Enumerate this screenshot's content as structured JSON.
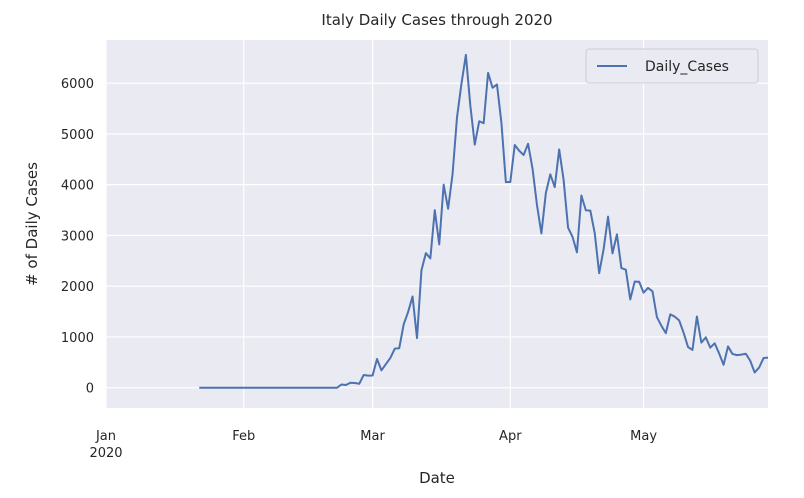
{
  "chart_data": {
    "type": "line",
    "title": "Italy Daily Cases through 2020",
    "xlabel": "Date",
    "ylabel": "# of Daily Cases",
    "x_start": "2020-01-22",
    "x_end": "2020-05-29",
    "xlim": [
      "2020-01-01",
      "2020-05-29"
    ],
    "ylim": [
      -400,
      6850
    ],
    "grid": true,
    "legend_position": "top-right",
    "x_ticks": [
      {
        "date": "2020-01-01",
        "label": "Jan",
        "sublabel": "2020"
      },
      {
        "date": "2020-02-01",
        "label": "Feb"
      },
      {
        "date": "2020-03-01",
        "label": "Mar"
      },
      {
        "date": "2020-04-01",
        "label": "Apr"
      },
      {
        "date": "2020-05-01",
        "label": "May"
      }
    ],
    "y_ticks": [
      0,
      1000,
      2000,
      3000,
      4000,
      5000,
      6000
    ],
    "series": [
      {
        "name": "Daily_Cases",
        "color": "#4c72b0",
        "values": [
          0,
          0,
          0,
          0,
          0,
          0,
          0,
          0,
          0,
          0,
          0,
          0,
          0,
          0,
          0,
          0,
          0,
          0,
          0,
          0,
          0,
          0,
          0,
          0,
          0,
          0,
          0,
          0,
          0,
          0,
          0,
          0,
          62,
          53,
          97,
          93,
          78,
          250,
          238,
          240,
          566,
          342,
          466,
          587,
          769,
          778,
          1247,
          1492,
          1797,
          977,
          2313,
          2651,
          2547,
          3497,
          2823,
          4000,
          3526,
          4207,
          5322,
          5986,
          6557,
          5560,
          4789,
          5249,
          5210,
          6203,
          5909,
          5974,
          5217,
          4050,
          4053,
          4782,
          4668,
          4585,
          4805,
          4316,
          3599,
          3039,
          3836,
          4204,
          3951,
          4694,
          4092,
          3153,
          2972,
          2667,
          3786,
          3493,
          3491,
          3047,
          2256,
          2729,
          3370,
          2646,
          3021,
          2357,
          2324,
          1739,
          2091,
          2086,
          1872,
          1965,
          1900,
          1389,
          1221,
          1075,
          1444,
          1401,
          1327,
          1083,
          802,
          744,
          1402,
          888,
          992,
          789,
          875,
          675,
          451,
          813,
          665,
          642,
          652,
          669,
          531,
          300,
          397,
          584,
          593
        ]
      }
    ]
  }
}
